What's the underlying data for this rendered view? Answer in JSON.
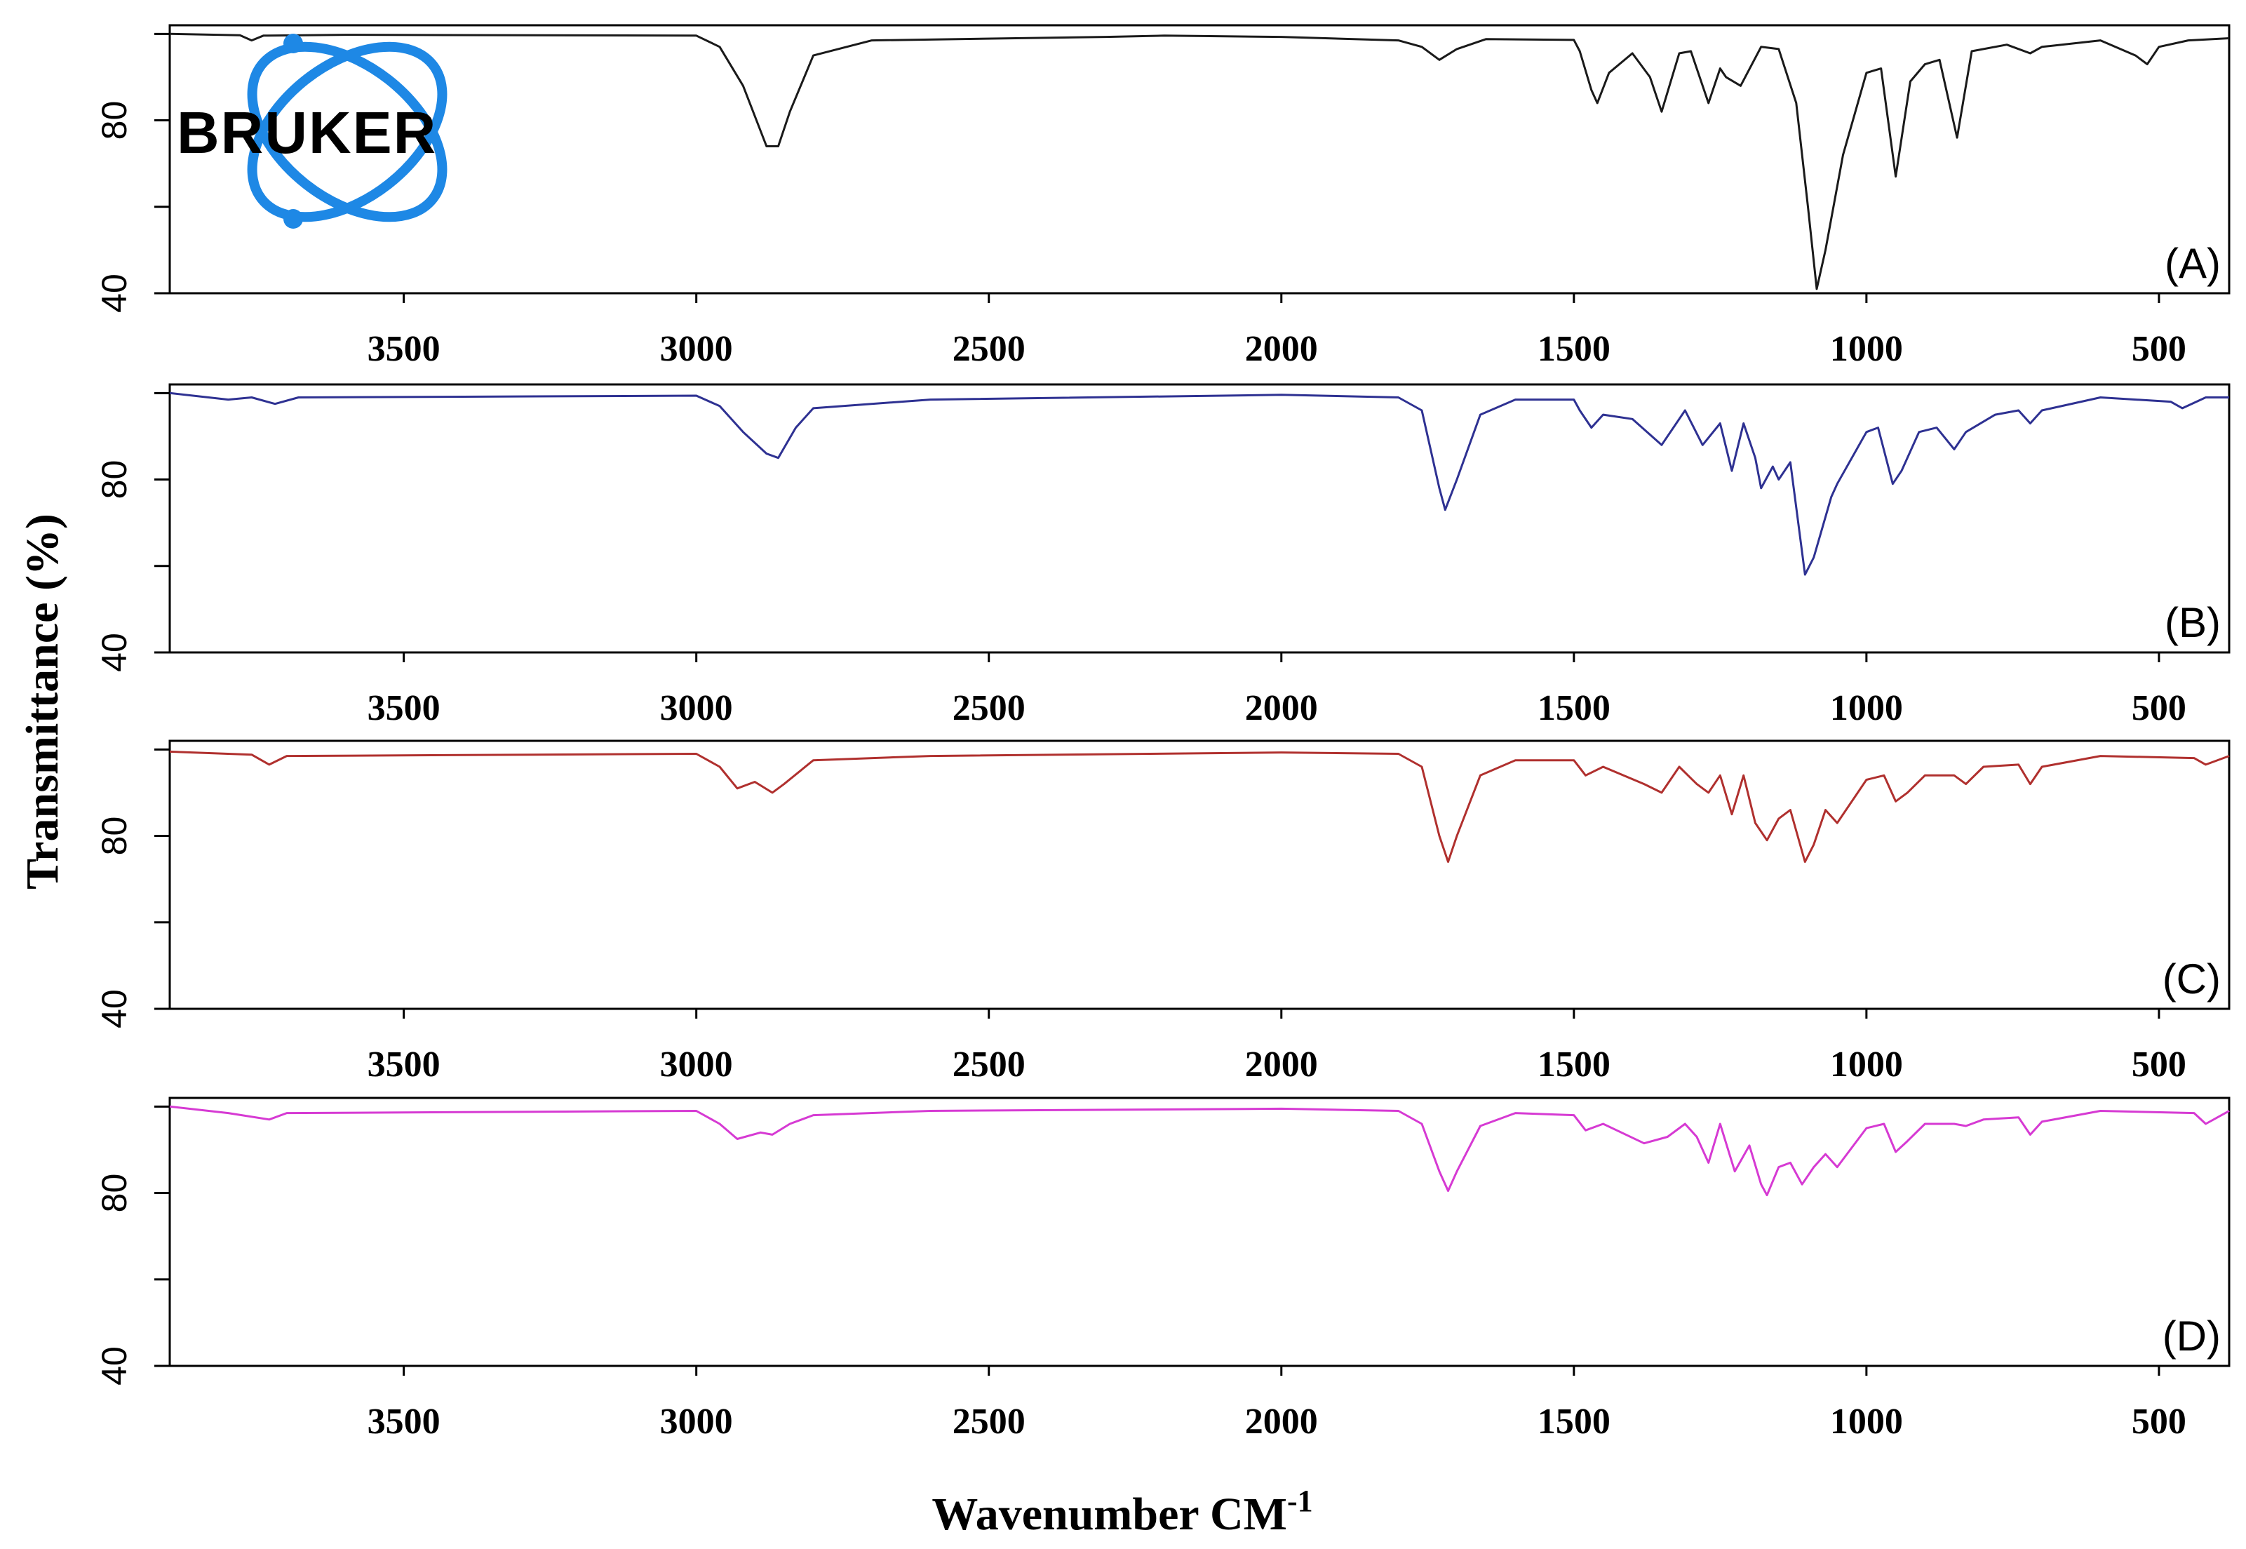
{
  "chart_data": {
    "type": "line",
    "logo": {
      "text": "BRUKER",
      "color": "#1e88e5"
    },
    "xlabel": "Wavenumber CM",
    "xlabel_superscript": "-1",
    "ylabel": "Transmittance (%)",
    "xlim": [
      3900,
      380
    ],
    "x_ticks": [
      3500,
      3000,
      2500,
      2000,
      1500,
      1000,
      500
    ],
    "ylim": [
      40,
      102
    ],
    "y_tick_labels": [
      40,
      80
    ],
    "series": [
      {
        "name": "(A)",
        "color": "#1a1a1a",
        "points": [
          [
            3900,
            100
          ],
          [
            3780,
            99.7
          ],
          [
            3760,
            98.5
          ],
          [
            3740,
            99.6
          ],
          [
            3600,
            99.8
          ],
          [
            3000,
            99.6
          ],
          [
            2960,
            97
          ],
          [
            2920,
            88
          ],
          [
            2880,
            74
          ],
          [
            2860,
            74
          ],
          [
            2840,
            82
          ],
          [
            2800,
            95
          ],
          [
            2700,
            98.5
          ],
          [
            2300,
            99.3
          ],
          [
            2200,
            99.6
          ],
          [
            2000,
            99.3
          ],
          [
            1800,
            98.5
          ],
          [
            1760,
            97
          ],
          [
            1730,
            94
          ],
          [
            1700,
            96.5
          ],
          [
            1650,
            98.8
          ],
          [
            1500,
            98.6
          ],
          [
            1490,
            96
          ],
          [
            1470,
            87
          ],
          [
            1460,
            84
          ],
          [
            1440,
            91
          ],
          [
            1400,
            95.5
          ],
          [
            1370,
            90
          ],
          [
            1350,
            82
          ],
          [
            1320,
            95.5
          ],
          [
            1300,
            96
          ],
          [
            1270,
            84
          ],
          [
            1250,
            92
          ],
          [
            1240,
            90
          ],
          [
            1215,
            88
          ],
          [
            1180,
            97
          ],
          [
            1150,
            96.5
          ],
          [
            1120,
            84
          ],
          [
            1100,
            60
          ],
          [
            1085,
            41
          ],
          [
            1070,
            50
          ],
          [
            1040,
            72
          ],
          [
            1000,
            91
          ],
          [
            975,
            92
          ],
          [
            950,
            67
          ],
          [
            925,
            89
          ],
          [
            900,
            93
          ],
          [
            875,
            94
          ],
          [
            845,
            76
          ],
          [
            820,
            96
          ],
          [
            760,
            97.5
          ],
          [
            720,
            95.5
          ],
          [
            700,
            97
          ],
          [
            600,
            98.5
          ],
          [
            540,
            95
          ],
          [
            520,
            93
          ],
          [
            500,
            97
          ],
          [
            450,
            98.5
          ],
          [
            380,
            99
          ]
        ]
      },
      {
        "name": "(B)",
        "color": "#2e3192",
        "points": [
          [
            3900,
            100
          ],
          [
            3800,
            98.5
          ],
          [
            3760,
            99
          ],
          [
            3720,
            97.5
          ],
          [
            3680,
            99
          ],
          [
            3000,
            99.4
          ],
          [
            2960,
            97
          ],
          [
            2920,
            91
          ],
          [
            2880,
            86
          ],
          [
            2860,
            85
          ],
          [
            2830,
            92
          ],
          [
            2800,
            96.5
          ],
          [
            2600,
            98.5
          ],
          [
            2000,
            99.6
          ],
          [
            1800,
            99
          ],
          [
            1760,
            96
          ],
          [
            1730,
            78
          ],
          [
            1720,
            73
          ],
          [
            1700,
            80
          ],
          [
            1660,
            95
          ],
          [
            1600,
            98.5
          ],
          [
            1500,
            98.5
          ],
          [
            1490,
            96
          ],
          [
            1470,
            92
          ],
          [
            1450,
            95
          ],
          [
            1400,
            94
          ],
          [
            1350,
            88
          ],
          [
            1310,
            96
          ],
          [
            1280,
            88
          ],
          [
            1250,
            93
          ],
          [
            1230,
            82
          ],
          [
            1210,
            93
          ],
          [
            1190,
            85
          ],
          [
            1180,
            78
          ],
          [
            1160,
            83
          ],
          [
            1150,
            80
          ],
          [
            1130,
            84
          ],
          [
            1105,
            58
          ],
          [
            1090,
            62
          ],
          [
            1060,
            76
          ],
          [
            1050,
            79
          ],
          [
            1000,
            91
          ],
          [
            980,
            92
          ],
          [
            955,
            79
          ],
          [
            940,
            82
          ],
          [
            910,
            91
          ],
          [
            880,
            92
          ],
          [
            850,
            87
          ],
          [
            830,
            91
          ],
          [
            780,
            95
          ],
          [
            740,
            96
          ],
          [
            720,
            93
          ],
          [
            700,
            96
          ],
          [
            600,
            99
          ],
          [
            480,
            98
          ],
          [
            460,
            96.5
          ],
          [
            420,
            99
          ],
          [
            380,
            99
          ]
        ]
      },
      {
        "name": "(C)",
        "color": "#b0302e",
        "points": [
          [
            3900,
            99.5
          ],
          [
            3760,
            98.8
          ],
          [
            3730,
            96.5
          ],
          [
            3700,
            98.5
          ],
          [
            3000,
            99
          ],
          [
            2960,
            96
          ],
          [
            2930,
            91
          ],
          [
            2900,
            92.5
          ],
          [
            2870,
            90
          ],
          [
            2850,
            92
          ],
          [
            2800,
            97.5
          ],
          [
            2600,
            98.5
          ],
          [
            2000,
            99.3
          ],
          [
            1800,
            99
          ],
          [
            1760,
            96
          ],
          [
            1730,
            80
          ],
          [
            1715,
            74
          ],
          [
            1700,
            80
          ],
          [
            1660,
            94
          ],
          [
            1600,
            97.5
          ],
          [
            1500,
            97.5
          ],
          [
            1480,
            94
          ],
          [
            1450,
            96
          ],
          [
            1380,
            92
          ],
          [
            1350,
            90
          ],
          [
            1320,
            96
          ],
          [
            1290,
            92
          ],
          [
            1270,
            90
          ],
          [
            1250,
            94
          ],
          [
            1230,
            85
          ],
          [
            1210,
            94
          ],
          [
            1190,
            83
          ],
          [
            1170,
            79
          ],
          [
            1150,
            84
          ],
          [
            1130,
            86
          ],
          [
            1105,
            74
          ],
          [
            1090,
            78
          ],
          [
            1070,
            86
          ],
          [
            1050,
            83
          ],
          [
            1000,
            93
          ],
          [
            970,
            94
          ],
          [
            950,
            88
          ],
          [
            930,
            90
          ],
          [
            900,
            94
          ],
          [
            850,
            94
          ],
          [
            830,
            92
          ],
          [
            800,
            96
          ],
          [
            740,
            96.5
          ],
          [
            720,
            92
          ],
          [
            700,
            96
          ],
          [
            600,
            98.5
          ],
          [
            440,
            98
          ],
          [
            420,
            96.5
          ],
          [
            380,
            98.5
          ]
        ]
      },
      {
        "name": "(D)",
        "color": "#d63ad3",
        "points": [
          [
            3900,
            100
          ],
          [
            3800,
            98.5
          ],
          [
            3730,
            97
          ],
          [
            3700,
            98.5
          ],
          [
            3000,
            99
          ],
          [
            2960,
            96
          ],
          [
            2930,
            92.5
          ],
          [
            2890,
            94
          ],
          [
            2870,
            93.5
          ],
          [
            2840,
            96
          ],
          [
            2800,
            98
          ],
          [
            2600,
            99
          ],
          [
            2000,
            99.5
          ],
          [
            1800,
            99
          ],
          [
            1760,
            96
          ],
          [
            1730,
            85
          ],
          [
            1715,
            80.5
          ],
          [
            1700,
            85
          ],
          [
            1660,
            95.5
          ],
          [
            1600,
            98.5
          ],
          [
            1500,
            98
          ],
          [
            1480,
            94.5
          ],
          [
            1450,
            96
          ],
          [
            1380,
            91.5
          ],
          [
            1340,
            93
          ],
          [
            1310,
            96
          ],
          [
            1290,
            93
          ],
          [
            1270,
            87
          ],
          [
            1250,
            96
          ],
          [
            1225,
            85
          ],
          [
            1200,
            91
          ],
          [
            1180,
            82
          ],
          [
            1170,
            79.5
          ],
          [
            1150,
            86
          ],
          [
            1130,
            87
          ],
          [
            1110,
            82
          ],
          [
            1090,
            86
          ],
          [
            1070,
            89
          ],
          [
            1050,
            86
          ],
          [
            1000,
            95
          ],
          [
            970,
            96
          ],
          [
            950,
            89.5
          ],
          [
            930,
            92
          ],
          [
            900,
            96
          ],
          [
            850,
            96
          ],
          [
            830,
            95.5
          ],
          [
            800,
            97
          ],
          [
            740,
            97.5
          ],
          [
            720,
            93.5
          ],
          [
            700,
            96.5
          ],
          [
            600,
            99
          ],
          [
            440,
            98.5
          ],
          [
            420,
            96
          ],
          [
            380,
            99
          ]
        ]
      }
    ]
  }
}
